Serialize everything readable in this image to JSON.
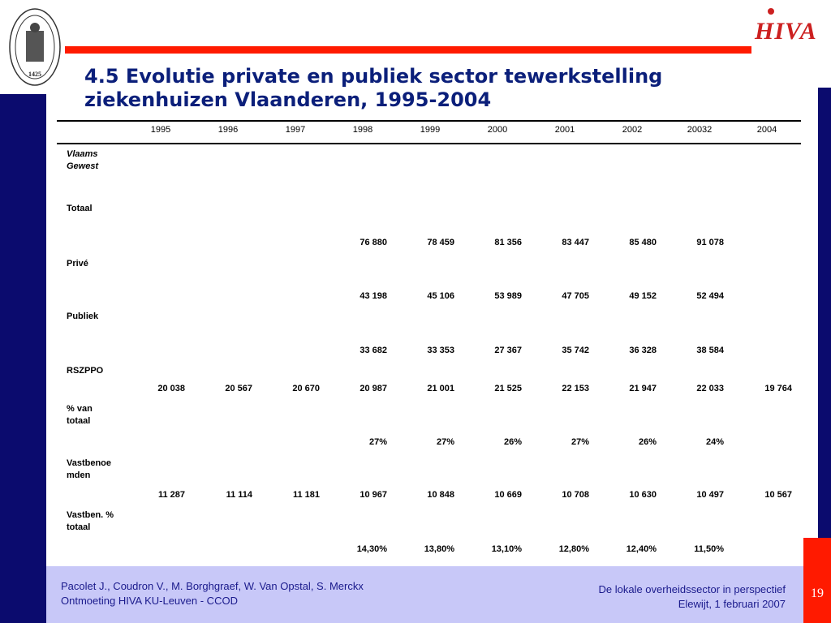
{
  "title": "4.5 Evolutie private en publiek sector tewerkstelling ziekenhuizen Vlaanderen, 1995-2004",
  "seal": {
    "year": "1425",
    "ring_text": "SIGILLVM VNIVERSITATIS LOVANIENSIS"
  },
  "logo": {
    "text": "HIVA"
  },
  "table": {
    "columns": [
      "1995",
      "1996",
      "1997",
      "1998",
      "1999",
      "2000",
      "2001",
      "2002",
      "20032",
      "2004"
    ],
    "rows": [
      {
        "label": "Vlaams Gewest",
        "values": [
          "",
          "",
          "",
          "",
          "",
          "",
          "",
          "",
          "",
          ""
        ]
      },
      {
        "label": "Totaal",
        "values": [
          "",
          "",
          "",
          "76 880",
          "78 459",
          "81 356",
          "83 447",
          "85 480",
          "91 078",
          ""
        ]
      },
      {
        "label": "Privé",
        "values": [
          "",
          "",
          "",
          "43 198",
          "45 106",
          "53 989",
          "47 705",
          "49 152",
          "52 494",
          ""
        ]
      },
      {
        "label": "Publiek",
        "values": [
          "",
          "",
          "",
          "33 682",
          "33 353",
          "27 367",
          "35 742",
          "36 328",
          "38 584",
          ""
        ]
      },
      {
        "label": "RSZPPO",
        "values": [
          "20 038",
          "20 567",
          "20 670",
          "20 987",
          "21 001",
          "21 525",
          "22 153",
          "21 947",
          "22 033",
          "19 764"
        ]
      },
      {
        "label": "% van totaal",
        "values": [
          "",
          "",
          "",
          "27%",
          "27%",
          "26%",
          "27%",
          "26%",
          "24%",
          ""
        ]
      },
      {
        "label": "Vastbenoemden",
        "values": [
          "11 287",
          "11 114",
          "11 181",
          "10 967",
          "10 848",
          "10 669",
          "10 708",
          "10 630",
          "10 497",
          "10 567"
        ]
      },
      {
        "label": "Vastben. % totaal",
        "values": [
          "",
          "",
          "",
          "14,30%",
          "13,80%",
          "13,10%",
          "12,80%",
          "12,40%",
          "11,50%",
          ""
        ]
      }
    ]
  },
  "footer": {
    "left_line1": "Pacolet J., Coudron V., M. Borghgraef, W. Van Opstal, S. Merckx",
    "left_line2": "Ontmoeting HIVA KU-Leuven - CCOD",
    "right_line1": "De lokale overheidssector in perspectief",
    "right_line2": "Elewijt, 1 februari 2007"
  },
  "page_number": "19",
  "colors": {
    "navy": "#0b0b6e",
    "red": "#ff1a00",
    "title": "#0b1f7a",
    "footer_bg": "#c8c8f8",
    "footer_text": "#1a1a8c"
  }
}
